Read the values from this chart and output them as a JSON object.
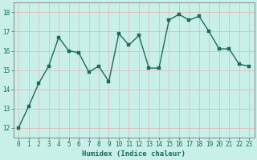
{
  "x": [
    0,
    1,
    2,
    3,
    4,
    5,
    6,
    7,
    8,
    9,
    10,
    11,
    12,
    13,
    14,
    15,
    16,
    17,
    18,
    19,
    20,
    21,
    22,
    23
  ],
  "y": [
    12.0,
    13.1,
    14.3,
    15.2,
    16.7,
    16.0,
    15.9,
    14.9,
    15.2,
    14.4,
    16.9,
    16.3,
    16.8,
    15.1,
    15.1,
    17.6,
    17.9,
    17.6,
    17.8,
    17.0,
    16.1,
    16.1,
    15.3,
    15.2
  ],
  "line_color": "#1a6b5a",
  "marker_color": "#1a6b5a",
  "bg_color": "#c8f0e8",
  "grid_color": "#e8b0b0",
  "axis_color": "#1a6b5a",
  "spine_color": "#888888",
  "xlabel": "Humidex (Indice chaleur)",
  "ylim": [
    11.5,
    18.5
  ],
  "xlim": [
    -0.5,
    23.5
  ],
  "yticks": [
    12,
    13,
    14,
    15,
    16,
    17,
    18
  ],
  "xticks": [
    0,
    1,
    2,
    3,
    4,
    5,
    6,
    7,
    8,
    9,
    10,
    11,
    12,
    13,
    14,
    15,
    16,
    17,
    18,
    19,
    20,
    21,
    22,
    23
  ],
  "label_fontsize": 6.5,
  "tick_fontsize": 5.5,
  "marker_size": 2.5,
  "line_width": 1.0
}
